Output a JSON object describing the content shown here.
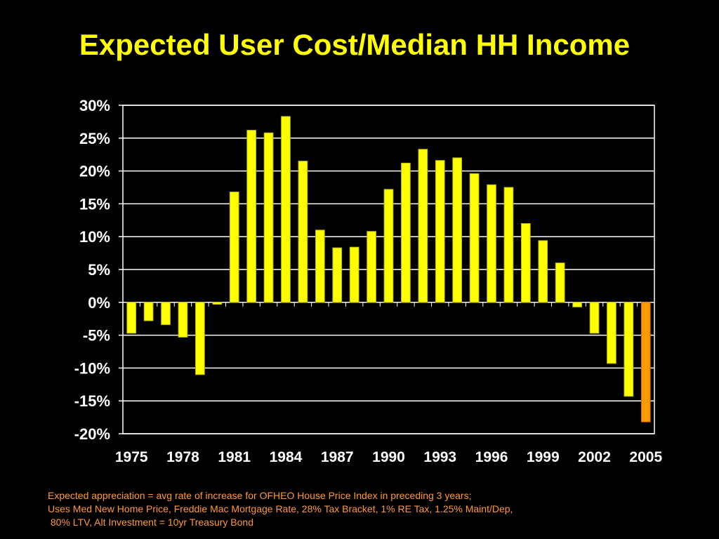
{
  "title": "Expected User Cost/Median HH Income",
  "notes": [
    "Expected appreciation = avg rate of increase for OFHEO House Price Index in preceding 3 years;",
    "Uses Med New Home Price, Freddie Mac Mortgage Rate, 28% Tax Bracket, 1% RE Tax, 1.25% Maint/Dep,",
    " 80% LTV, Alt Investment = 10yr Treasury Bond"
  ],
  "colors": {
    "background": "#000000",
    "text": "#ffffff",
    "title": "#ffff00",
    "bar": "#ffff00",
    "bar_highlight": "#ff9900",
    "notes": "#ff9933",
    "grid": "#ffffff"
  },
  "chart_data": {
    "type": "bar",
    "categories": [
      1975,
      1976,
      1977,
      1978,
      1979,
      1980,
      1981,
      1982,
      1983,
      1984,
      1985,
      1986,
      1987,
      1988,
      1989,
      1990,
      1991,
      1992,
      1993,
      1994,
      1995,
      1996,
      1997,
      1998,
      1999,
      2000,
      2001,
      2002,
      2003,
      2004,
      2005
    ],
    "values": [
      -4.7,
      -2.8,
      -3.4,
      -5.3,
      -11.0,
      -0.3,
      16.8,
      26.2,
      25.8,
      28.3,
      21.5,
      11.0,
      8.3,
      8.4,
      10.8,
      17.2,
      21.2,
      23.3,
      21.6,
      22.0,
      19.6,
      17.9,
      17.5,
      12.0,
      9.4,
      6.0,
      -0.7,
      -4.7,
      -9.3,
      -14.3,
      -18.2
    ],
    "highlight_categories": [
      2005
    ],
    "x_tick_labels": [
      "1975",
      "1978",
      "1981",
      "1984",
      "1987",
      "1990",
      "1993",
      "1996",
      "1999",
      "2002",
      "2005"
    ],
    "y_tick_labels": [
      "30%",
      "25%",
      "20%",
      "15%",
      "10%",
      "5%",
      "0%",
      "-5%",
      "-10%",
      "-15%",
      "-20%"
    ],
    "ylim": [
      -20,
      30
    ],
    "y_tick_step": 5,
    "grid": true,
    "legend": "none",
    "xlabel": "",
    "ylabel": ""
  }
}
